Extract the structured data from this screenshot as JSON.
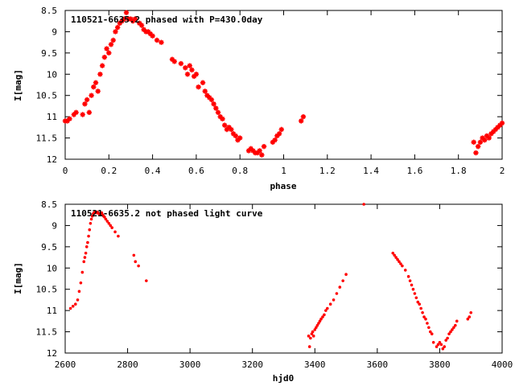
{
  "chart_data": [
    {
      "type": "scatter",
      "title": "110521-6635.2 phased with P=430.0day",
      "xlabel": "phase",
      "ylabel": "I[mag]",
      "xlim": [
        0,
        2
      ],
      "ylim": [
        12,
        8.5
      ],
      "y_inverted": true,
      "x_ticks": [
        0,
        0.2,
        0.4,
        0.6,
        0.8,
        1,
        1.2,
        1.4,
        1.6,
        1.8,
        2
      ],
      "x_tick_labels": [
        "0",
        "0.2",
        "0.4",
        "0.6",
        "0.8",
        "1",
        "1.2",
        "1.4",
        "1.6",
        "1.8",
        "2"
      ],
      "y_ticks": [
        8.5,
        9,
        9.5,
        10,
        10.5,
        11,
        11.5,
        12
      ],
      "y_tick_labels": [
        "8.5",
        "9",
        "9.5",
        "10",
        "10.5",
        "11",
        "11.5",
        "12"
      ],
      "marker": "star",
      "color": "#ff0000",
      "grid": false,
      "series": [
        {
          "x": [
            0.0,
            0.01,
            0.02,
            0.04,
            0.05,
            0.08,
            0.09,
            0.1,
            0.11,
            0.12,
            0.13,
            0.14,
            0.15,
            0.16,
            0.17,
            0.18,
            0.19,
            0.2,
            0.21,
            0.22,
            0.23,
            0.24,
            0.25,
            0.26,
            0.27,
            0.28,
            0.29,
            0.3,
            0.31,
            0.32,
            0.34,
            0.35,
            0.36,
            0.37,
            0.38,
            0.39,
            0.4,
            0.42,
            0.44,
            0.49,
            0.5,
            0.53,
            0.55,
            0.56,
            0.57,
            0.58,
            0.59,
            0.6,
            0.61,
            0.63,
            0.64,
            0.65,
            0.66,
            0.67,
            0.68,
            0.69,
            0.7,
            0.71,
            0.72,
            0.73,
            0.74,
            0.75,
            0.76,
            0.77,
            0.78,
            0.79,
            0.8,
            0.84,
            0.85,
            0.86,
            0.87,
            0.88,
            0.89,
            0.9,
            0.91,
            0.95,
            0.96,
            0.97,
            0.98,
            0.99,
            1.08,
            1.09,
            1.87,
            1.88,
            1.89,
            1.9,
            1.91,
            1.92,
            1.93,
            1.94,
            1.95,
            1.96,
            1.97,
            1.98,
            1.99,
            2.0
          ],
          "y": [
            11.1,
            11.1,
            11.05,
            10.95,
            10.9,
            10.95,
            10.7,
            10.6,
            10.9,
            10.5,
            10.3,
            10.2,
            10.4,
            10.0,
            9.8,
            9.6,
            9.4,
            9.5,
            9.3,
            9.2,
            9.0,
            8.9,
            8.8,
            8.75,
            8.7,
            8.55,
            8.7,
            8.7,
            8.75,
            8.7,
            8.8,
            8.85,
            8.95,
            9.0,
            9.0,
            9.05,
            9.1,
            9.2,
            9.25,
            9.65,
            9.7,
            9.75,
            9.85,
            10.0,
            9.8,
            9.9,
            10.05,
            10.0,
            10.3,
            10.2,
            10.4,
            10.5,
            10.55,
            10.6,
            10.7,
            10.8,
            10.9,
            11.0,
            11.05,
            11.2,
            11.3,
            11.25,
            11.3,
            11.4,
            11.45,
            11.55,
            11.5,
            11.8,
            11.75,
            11.8,
            11.85,
            11.85,
            11.8,
            11.9,
            11.7,
            11.6,
            11.55,
            11.45,
            11.4,
            11.3,
            11.1,
            11.0,
            11.6,
            11.85,
            11.7,
            11.6,
            11.5,
            11.55,
            11.45,
            11.5,
            11.4,
            11.35,
            11.3,
            11.25,
            11.2,
            11.15
          ]
        }
      ]
    },
    {
      "type": "scatter",
      "title": "110521-6635.2 not phased light curve",
      "xlabel": "hjd0",
      "ylabel": "I[mag]",
      "xlim": [
        2600,
        4000
      ],
      "ylim": [
        12,
        8.5
      ],
      "y_inverted": true,
      "x_ticks": [
        2600,
        2800,
        3000,
        3200,
        3400,
        3600,
        3800,
        4000
      ],
      "x_tick_labels": [
        "2600",
        "2800",
        "3000",
        "3200",
        "3400",
        "3600",
        "3800",
        "4000"
      ],
      "y_ticks": [
        8.5,
        9,
        9.5,
        10,
        10.5,
        11,
        11.5,
        12
      ],
      "y_tick_labels": [
        "8.5",
        "9",
        "9.5",
        "10",
        "10.5",
        "11",
        "11.5",
        "12"
      ],
      "marker": "dot",
      "color": "#ff0000",
      "grid": false,
      "series": [
        {
          "x": [
            2617,
            2625,
            2633,
            2640,
            2645,
            2650,
            2655,
            2660,
            2663,
            2666,
            2669,
            2672,
            2675,
            2678,
            2681,
            2684,
            2687,
            2690,
            2693,
            2696,
            2699,
            2702,
            2705,
            2708,
            2711,
            2714,
            2717,
            2720,
            2723,
            2726,
            2730,
            2735,
            2740,
            2745,
            2750,
            2760,
            2770,
            2820,
            2825,
            2835,
            2860,
            3380,
            3383,
            3386,
            3390,
            3393,
            3396,
            3400,
            3404,
            3408,
            3412,
            3416,
            3420,
            3425,
            3430,
            3435,
            3440,
            3450,
            3460,
            3470,
            3480,
            3490,
            3500,
            3557,
            3650,
            3655,
            3660,
            3665,
            3670,
            3675,
            3680,
            3690,
            3700,
            3705,
            3710,
            3715,
            3720,
            3725,
            3730,
            3735,
            3740,
            3745,
            3750,
            3755,
            3760,
            3765,
            3770,
            3775,
            3780,
            3790,
            3795,
            3800,
            3805,
            3810,
            3815,
            3820,
            3825,
            3830,
            3835,
            3840,
            3845,
            3850,
            3855,
            3890,
            3895,
            3900
          ],
          "y": [
            10.95,
            10.9,
            10.85,
            10.75,
            10.55,
            10.35,
            10.1,
            9.85,
            9.75,
            9.65,
            9.5,
            9.4,
            9.25,
            9.1,
            8.95,
            8.85,
            8.78,
            8.72,
            8.7,
            8.68,
            8.7,
            8.68,
            8.7,
            8.72,
            8.75,
            8.72,
            8.7,
            8.75,
            8.78,
            8.8,
            8.85,
            8.9,
            8.95,
            9.0,
            9.05,
            9.15,
            9.25,
            9.7,
            9.85,
            9.95,
            10.3,
            11.6,
            11.85,
            11.65,
            11.55,
            11.5,
            11.6,
            11.45,
            11.4,
            11.35,
            11.3,
            11.25,
            11.2,
            11.15,
            11.1,
            11.0,
            10.95,
            10.85,
            10.75,
            10.6,
            10.45,
            10.3,
            10.15,
            8.5,
            9.65,
            9.7,
            9.75,
            9.8,
            9.85,
            9.9,
            9.95,
            10.05,
            10.2,
            10.3,
            10.4,
            10.5,
            10.6,
            10.7,
            10.8,
            10.85,
            10.95,
            11.05,
            11.15,
            11.2,
            11.3,
            11.4,
            11.5,
            11.55,
            11.75,
            11.85,
            11.8,
            11.75,
            11.8,
            11.9,
            11.85,
            11.7,
            11.65,
            11.55,
            11.5,
            11.45,
            11.4,
            11.35,
            11.25,
            11.2,
            11.15,
            11.05
          ]
        }
      ]
    }
  ]
}
